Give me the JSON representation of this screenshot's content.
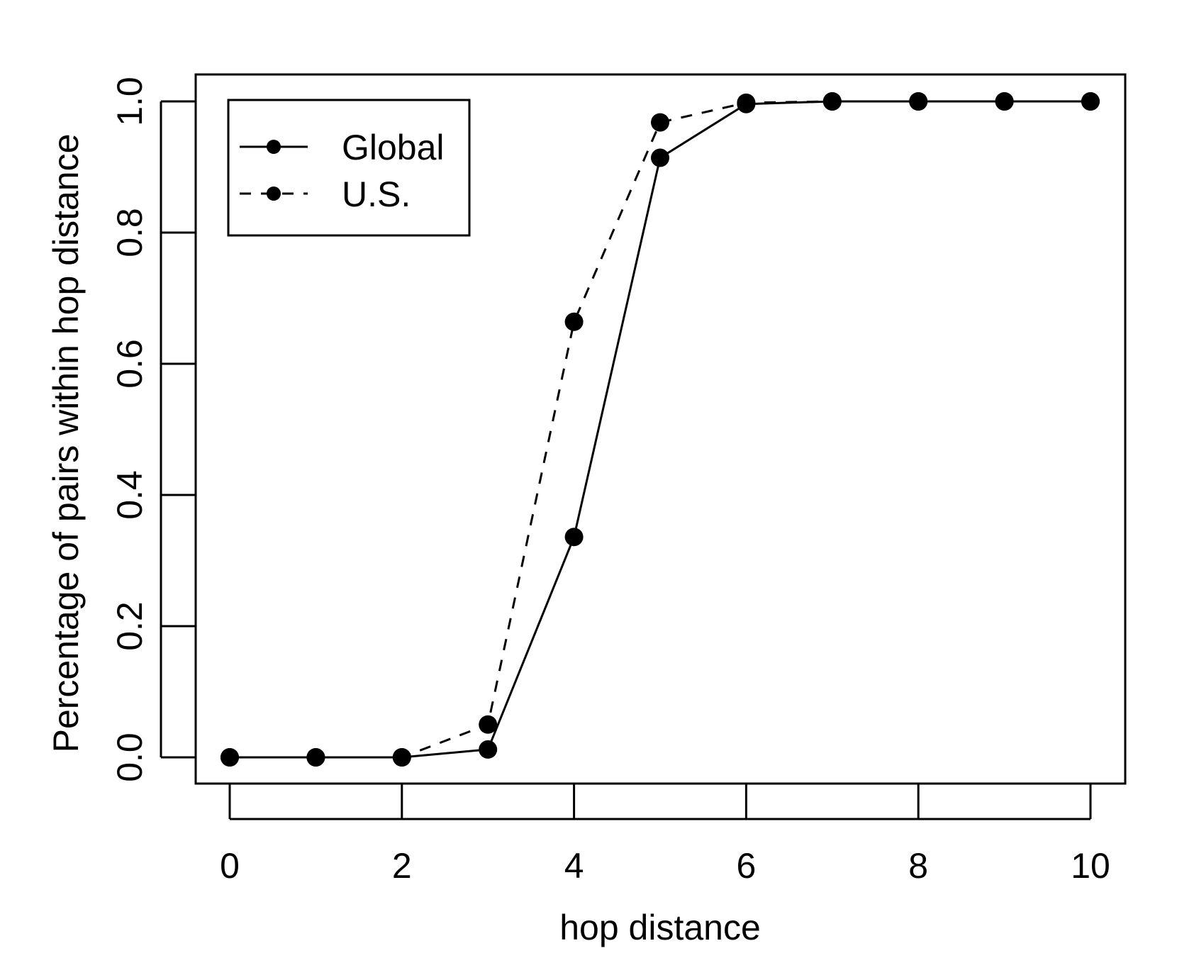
{
  "chart_data": {
    "type": "line",
    "xlabel": "hop distance",
    "ylabel": "Percentage of pairs within hop distance",
    "xlim": [
      0,
      10
    ],
    "ylim": [
      0,
      1
    ],
    "x_ticks": [
      "0",
      "2",
      "4",
      "6",
      "8",
      "10"
    ],
    "y_ticks": [
      "0.0",
      "0.2",
      "0.4",
      "0.6",
      "0.8",
      "1.0"
    ],
    "x": [
      0,
      1,
      2,
      3,
      4,
      5,
      6,
      7,
      8,
      9,
      10
    ],
    "legend_position": "top-left",
    "grid": false,
    "series": [
      {
        "name": "Global",
        "line_style": "solid",
        "color": "#000000",
        "values": [
          0.0,
          0.0,
          0.0,
          0.012,
          0.336,
          0.914,
          0.996,
          1.0,
          1.0,
          1.0,
          1.0
        ]
      },
      {
        "name": "U.S.",
        "line_style": "dashed",
        "color": "#000000",
        "values": [
          0.0,
          0.0,
          0.0,
          0.05,
          0.664,
          0.968,
          0.998,
          1.0,
          1.0,
          1.0,
          1.0
        ]
      }
    ]
  }
}
